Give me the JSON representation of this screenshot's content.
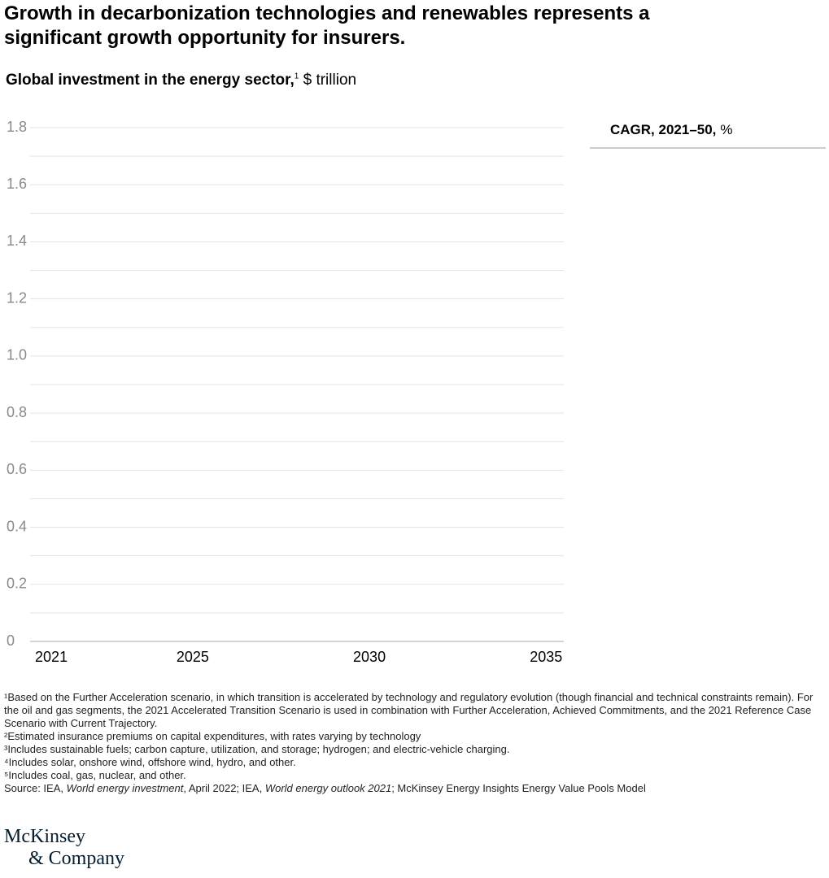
{
  "chart_data": {
    "type": "line",
    "title": "Growth in decarbonization technologies and renewables represents a significant growth opportunity for insurers.",
    "subtitle": {
      "text": "Global investment in the energy sector,",
      "sup": "1",
      "unit": "$ trillion"
    },
    "xlim": [
      2020.4,
      2035.5
    ],
    "xticks": [
      2021,
      2025,
      2030,
      2035
    ],
    "ylim": [
      0,
      1.8
    ],
    "yticks": [
      0,
      0.2,
      0.4,
      0.6,
      0.8,
      {
        "value": 1,
        "label": "1.0"
      },
      1.2,
      1.4,
      1.6,
      1.8
    ],
    "y_minor_ticks": [
      0.1,
      0.3,
      0.5,
      0.7,
      0.9,
      1.1,
      1.3,
      1.5,
      1.7
    ],
    "grid": true,
    "side_panel": {
      "title": "CAGR, 2021–50,",
      "unit": "%"
    }
  },
  "notes": {
    "footnotes": [
      "¹Based on the Further Acceleration scenario, in which transition is accelerated by technology and regulatory evolution (though financial and technical constraints remain). For the oil and gas segments, the 2021 Accelerated Transition Scenario is used in combination with Further Acceleration, Achieved Commitments, and the 2021 Reference Case Scenario with Current Trajectory.",
      "²Estimated insurance premiums on capital expenditures, with rates varying by technology",
      "³Includes sustainable fuels; carbon capture, utilization, and storage; hydrogen; and electric-vehicle charging.",
      "⁴Includes solar, onshore wind, offshore wind, hydro, and other.",
      "⁵Includes coal, gas, nuclear, and other."
    ],
    "source": [
      "Source: IEA, ",
      "World energy investment",
      ", April 2022; IEA, ",
      "World energy outlook 2021",
      "; McKinsey Energy Insights Energy Value Pools Model"
    ]
  },
  "brand": [
    "McKinsey",
    "& Company"
  ]
}
